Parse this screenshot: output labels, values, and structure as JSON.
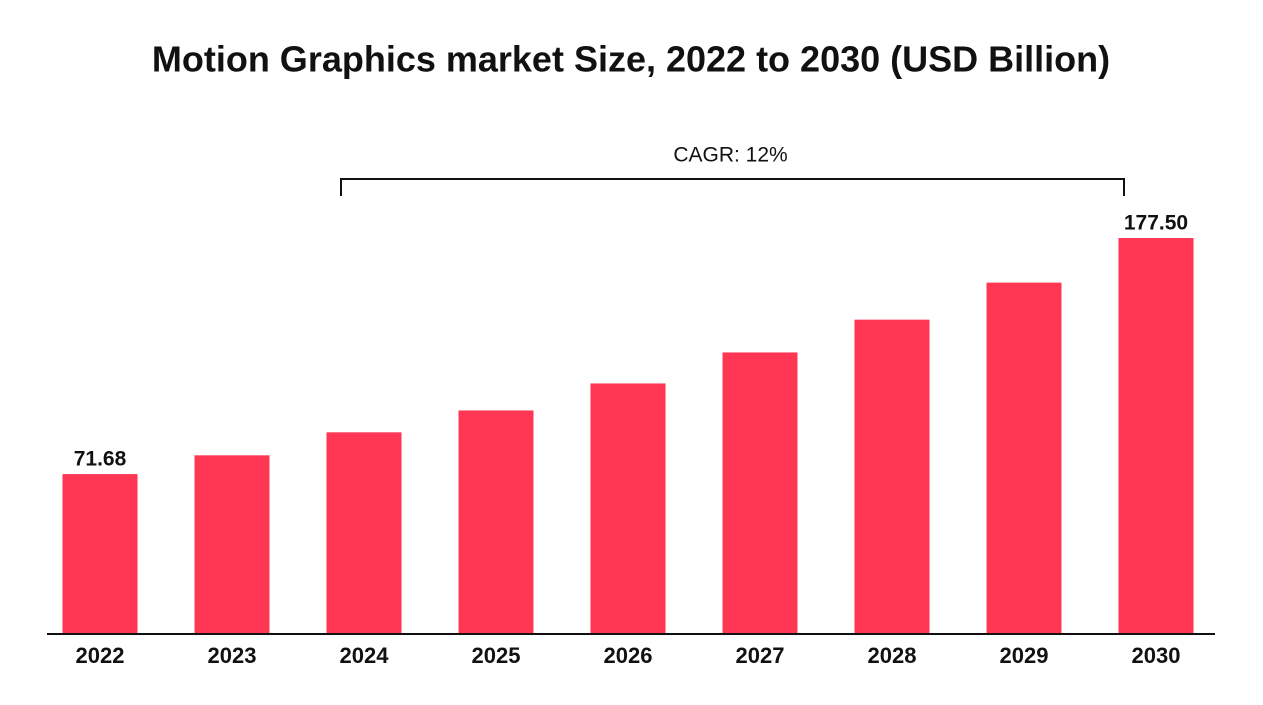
{
  "chart_data": {
    "type": "bar",
    "title": "Motion Graphics market Size, 2022 to 2030 (USD Billion)",
    "annotation": "CAGR: 12%",
    "categories": [
      "2022",
      "2023",
      "2024",
      "2025",
      "2026",
      "2027",
      "2028",
      "2029",
      "2030"
    ],
    "values": [
      71.68,
      80.1,
      90.4,
      100.2,
      112.3,
      126.2,
      140.9,
      157.5,
      177.5
    ],
    "value_labels": [
      "71.68",
      null,
      null,
      null,
      null,
      null,
      null,
      null,
      "177.50"
    ],
    "color": "#ff3654"
  }
}
